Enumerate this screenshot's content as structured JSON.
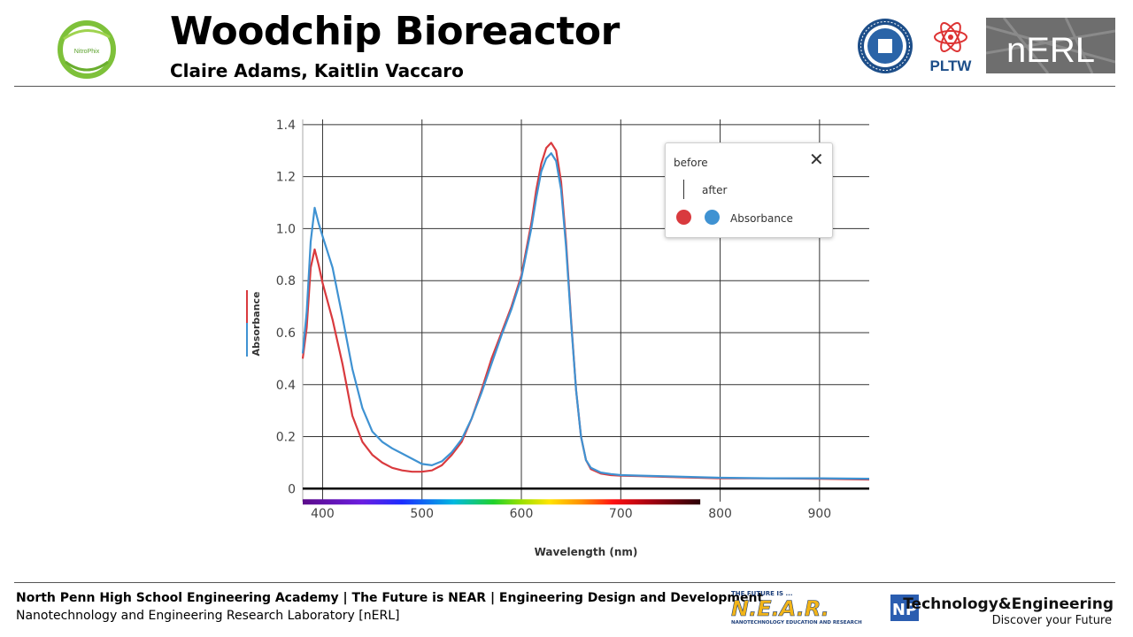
{
  "header": {
    "title": "Woodchip Bioreactor",
    "authors": "Claire Adams, Kaitlin Vaccaro",
    "team_logo_text": "NitroPhix",
    "pltw_text": "PLTW",
    "nerl_text": "nERL"
  },
  "footer": {
    "line1": "North Penn High School Engineering Academy | The Future is NEAR | Engineering Design and Development",
    "line2": "Nanotechnology and Engineering Research Laboratory [nERL]",
    "near_top": "THE FUTURE IS ...",
    "near_main": "N.E.A.R.",
    "near_sub": "NANOTECHNOLOGY EDUCATION AND RESEARCH",
    "te_main": "Technology&Engineering",
    "te_sub": "Discover your Future",
    "te_logo": "NP"
  },
  "legend": {
    "before_label": "before",
    "after_label": "after",
    "absorbance_label": "Absorbance",
    "close_symbol": "✕"
  },
  "colors": {
    "before": "#d93a3e",
    "after": "#3f92d2"
  },
  "chart_data": {
    "type": "line",
    "xlabel": "Wavelength (nm)",
    "ylabel": "Absorbance",
    "xlim": [
      380,
      950
    ],
    "ylim": [
      -0.05,
      1.42
    ],
    "x_ticks": [
      400,
      500,
      600,
      700,
      800,
      900
    ],
    "y_ticks": [
      0,
      0.2,
      0.4,
      0.6,
      0.8,
      1.0,
      1.2,
      1.4
    ],
    "y_tick_labels": [
      "0",
      "0.2",
      "0.4",
      "0.6",
      "0.8",
      "1.0",
      "1.2",
      "1.4"
    ],
    "grid": true,
    "legend_position": "top-right",
    "series": [
      {
        "name": "before",
        "x": [
          380,
          384,
          388,
          392,
          396,
          400,
          410,
          420,
          430,
          440,
          450,
          460,
          470,
          480,
          490,
          500,
          510,
          520,
          530,
          540,
          550,
          560,
          570,
          580,
          590,
          600,
          610,
          615,
          620,
          625,
          630,
          635,
          640,
          645,
          650,
          655,
          660,
          665,
          670,
          680,
          690,
          700,
          720,
          750,
          800,
          850,
          900,
          950
        ],
        "y": [
          0.5,
          0.62,
          0.85,
          0.92,
          0.86,
          0.79,
          0.65,
          0.48,
          0.28,
          0.18,
          0.13,
          0.1,
          0.08,
          0.07,
          0.065,
          0.065,
          0.07,
          0.09,
          0.13,
          0.18,
          0.27,
          0.38,
          0.5,
          0.6,
          0.7,
          0.82,
          1.02,
          1.15,
          1.25,
          1.31,
          1.33,
          1.3,
          1.18,
          0.95,
          0.65,
          0.38,
          0.2,
          0.11,
          0.075,
          0.058,
          0.052,
          0.05,
          0.048,
          0.045,
          0.04,
          0.04,
          0.038,
          0.035
        ]
      },
      {
        "name": "after",
        "x": [
          380,
          384,
          388,
          392,
          396,
          400,
          410,
          420,
          430,
          440,
          450,
          460,
          470,
          480,
          490,
          500,
          510,
          520,
          530,
          540,
          550,
          560,
          570,
          580,
          590,
          600,
          610,
          615,
          620,
          625,
          630,
          635,
          640,
          645,
          650,
          655,
          660,
          665,
          670,
          680,
          690,
          700,
          720,
          750,
          800,
          850,
          900,
          950
        ],
        "y": [
          0.52,
          0.68,
          0.95,
          1.08,
          1.02,
          0.97,
          0.85,
          0.66,
          0.46,
          0.31,
          0.22,
          0.18,
          0.155,
          0.135,
          0.115,
          0.095,
          0.09,
          0.105,
          0.14,
          0.19,
          0.27,
          0.37,
          0.48,
          0.59,
          0.69,
          0.81,
          1.0,
          1.12,
          1.22,
          1.27,
          1.29,
          1.26,
          1.15,
          0.93,
          0.64,
          0.38,
          0.2,
          0.11,
          0.08,
          0.062,
          0.056,
          0.052,
          0.05,
          0.047,
          0.042,
          0.04,
          0.04,
          0.038
        ]
      }
    ],
    "spectrum_bar": {
      "x_start": 380,
      "x_end": 780
    }
  }
}
